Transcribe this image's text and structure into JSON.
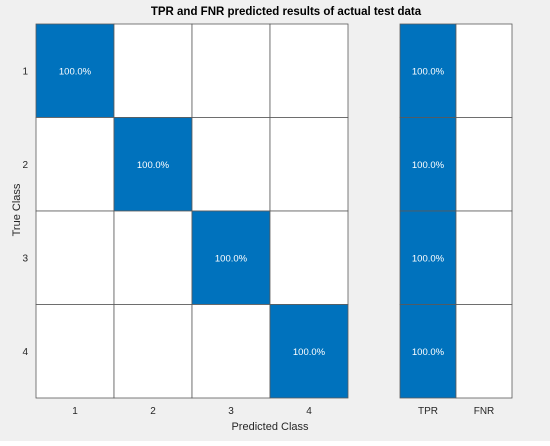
{
  "chart_data": {
    "type": "heatmap",
    "title": "TPR and FNR predicted results of actual test data",
    "xlabel": "Predicted Class",
    "ylabel": "True Class",
    "row_labels": [
      "1",
      "2",
      "3",
      "4"
    ],
    "col_labels": [
      "1",
      "2",
      "3",
      "4"
    ],
    "matrix": [
      [
        "100.0%",
        "",
        "",
        ""
      ],
      [
        "",
        "100.0%",
        "",
        ""
      ],
      [
        "",
        "",
        "100.0%",
        ""
      ],
      [
        "",
        "",
        "",
        "100.0%"
      ]
    ],
    "summary": {
      "col_labels": [
        "TPR",
        "FNR"
      ],
      "matrix": [
        [
          "100.0%",
          ""
        ],
        [
          "100.0%",
          ""
        ],
        [
          "100.0%",
          ""
        ],
        [
          "100.0%",
          ""
        ]
      ]
    },
    "colors": {
      "filled": "#0072bd",
      "empty": "#ffffff",
      "grid": "#5a5a5a",
      "cell_text": "#ffffff",
      "axis_text": "#262626",
      "background": "#f0f0f0"
    }
  }
}
